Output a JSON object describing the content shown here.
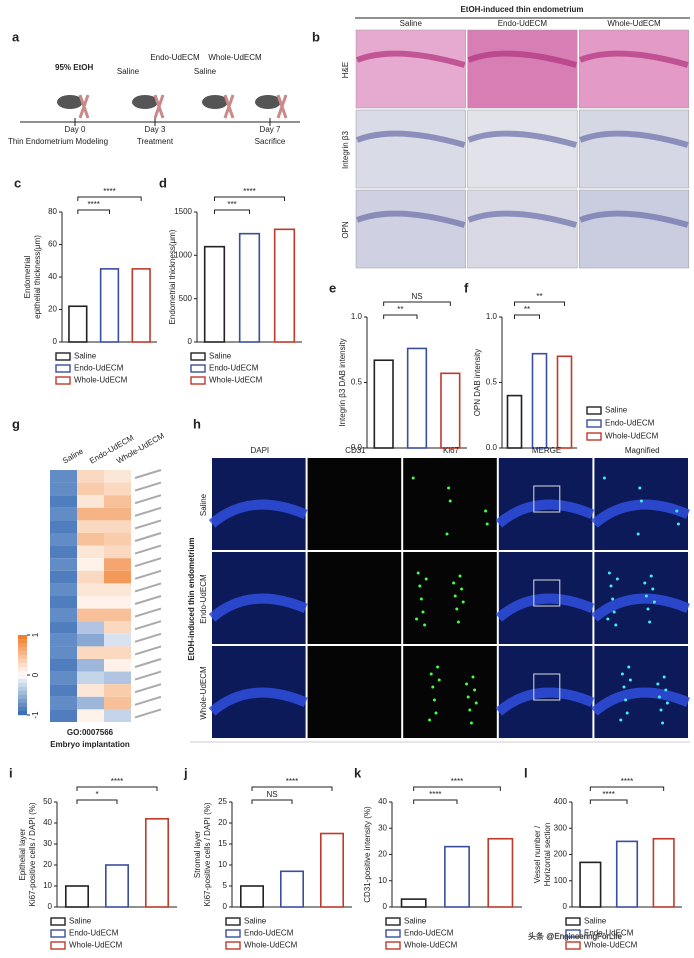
{
  "panel_a": {
    "letter": "a",
    "agent": "95% EtOH",
    "groups": [
      "Saline",
      "Endo-UdECM",
      "Saline",
      "Whole-UdECM"
    ],
    "days": [
      "Day 0",
      "Day 3",
      "Day 7"
    ],
    "stages": [
      "Thin Endometrium Modeling",
      "Treatment",
      "Sacrifice"
    ]
  },
  "panel_b": {
    "letter": "b",
    "title": "EtOH-induced thin endometrium",
    "columns": [
      "Saline",
      "Endo-UdECM",
      "Whole-UdECM"
    ],
    "rows": [
      "H&E",
      "Integrin β3",
      "OPN"
    ]
  },
  "panel_h": {
    "letter": "h",
    "side_label": "EtOH-induced thin endometrium",
    "columns": [
      "DAPI",
      "CD31",
      "Ki67",
      "MERGE",
      "Magnified"
    ],
    "rows": [
      "Saline",
      "Endo-UdECM",
      "Whole-UdECM"
    ]
  },
  "watermark": "头条 @EngineeringForLife",
  "chart_data": [
    {
      "panel": "c",
      "type": "bar",
      "ylabel": [
        "Endometrial",
        "epithelial thickness(μm)"
      ],
      "categories": [
        "Saline",
        "Endo-UdECM",
        "Whole-UdECM"
      ],
      "values": [
        22,
        45,
        45
      ],
      "colors": [
        "#222222",
        "#3a4ea0",
        "#c0392b"
      ],
      "ylim": [
        0,
        80
      ],
      "yticks": [
        0,
        20,
        40,
        60,
        80
      ],
      "annotations": [
        "****",
        "****"
      ]
    },
    {
      "panel": "d",
      "type": "bar",
      "ylabel": [
        "Endometrial thickness(μm)"
      ],
      "categories": [
        "Saline",
        "Endo-UdECM",
        "Whole-UdECM"
      ],
      "values": [
        1100,
        1250,
        1300
      ],
      "colors": [
        "#222222",
        "#3a4ea0",
        "#c0392b"
      ],
      "ylim": [
        0,
        1500
      ],
      "yticks": [
        0,
        500,
        1000,
        1500
      ],
      "annotations": [
        "***",
        "****"
      ]
    },
    {
      "panel": "e",
      "type": "bar",
      "ylabel": [
        "Integrin β3 DAB intensity"
      ],
      "values": [
        0.67,
        0.76,
        0.57
      ],
      "colors": [
        "#222222",
        "#3a4ea0",
        "#c0392b"
      ],
      "ylim": [
        0,
        1
      ],
      "yticks": [
        {
          "value": 0,
          "label": "0.0"
        },
        {
          "value": 0.5,
          "label": "0.5"
        },
        {
          "value": 1,
          "label": "1.0"
        }
      ],
      "annotations": [
        "**",
        "NS"
      ]
    },
    {
      "panel": "f",
      "type": "bar",
      "ylabel": [
        "OPN DAB intensity"
      ],
      "categories": [
        "Saline",
        "Endo-UdECM",
        "Whole-UdECM"
      ],
      "values": [
        0.4,
        0.72,
        0.7
      ],
      "colors": [
        "#222222",
        "#3a4ea0",
        "#c0392b"
      ],
      "ylim": [
        0,
        1
      ],
      "yticks": [
        {
          "value": 0,
          "label": "0.0"
        },
        {
          "value": 0.5,
          "label": "0.5"
        },
        {
          "value": 1,
          "label": "1.0"
        }
      ],
      "annotations": [
        "**",
        "**"
      ]
    },
    {
      "panel": "i",
      "type": "bar",
      "ylabel": [
        "Epithelial layer",
        "Ki67-positive cells / DAPI (%)"
      ],
      "categories": [
        "Saline",
        "Endo-UdECM",
        "Whole-UdECM"
      ],
      "values": [
        10,
        20,
        42
      ],
      "colors": [
        "#222222",
        "#3a4ea0",
        "#c0392b"
      ],
      "ylim": [
        0,
        50
      ],
      "yticks": [
        0,
        10,
        20,
        30,
        40,
        50
      ],
      "annotations": [
        "*",
        "****"
      ]
    },
    {
      "panel": "j",
      "type": "bar",
      "ylabel": [
        "Stromal layer",
        "Ki67-positive cells / DAPI (%)"
      ],
      "categories": [
        "Saline",
        "Endo-UdECM",
        "Whole-UdECM"
      ],
      "values": [
        5,
        8.5,
        17.5
      ],
      "colors": [
        "#222222",
        "#3a4ea0",
        "#c0392b"
      ],
      "ylim": [
        0,
        25
      ],
      "yticks": [
        0,
        5,
        10,
        15,
        20,
        25
      ],
      "annotations": [
        "NS",
        "****"
      ]
    },
    {
      "panel": "k",
      "type": "bar",
      "ylabel": [
        "CD31-positive intensity (%)"
      ],
      "categories": [
        "Saline",
        "Endo-UdECM",
        "Whole-UdECM"
      ],
      "values": [
        3,
        23,
        26
      ],
      "colors": [
        "#222222",
        "#3a4ea0",
        "#c0392b"
      ],
      "ylim": [
        0,
        40
      ],
      "yticks": [
        0,
        10,
        20,
        30,
        40
      ],
      "annotations": [
        "****",
        "****"
      ]
    },
    {
      "panel": "l",
      "type": "bar",
      "ylabel": [
        "Vessel number /",
        "Horizontal section"
      ],
      "categories": [
        "Saline",
        "Endo-UdECM",
        "Whole-UdECM"
      ],
      "values": [
        170,
        250,
        260
      ],
      "colors": [
        "#222222",
        "#3a4ea0",
        "#c0392b"
      ],
      "ylim": [
        0,
        400
      ],
      "yticks": [
        0,
        100,
        200,
        300,
        400
      ],
      "annotations": [
        "****",
        "****"
      ]
    },
    {
      "panel": "g",
      "type": "heatmap",
      "x": [
        "Saline",
        "Endo-UdECM",
        "Whole-UdECM"
      ],
      "zlim": [
        -1,
        1
      ],
      "zticks": [
        1,
        0,
        -1
      ],
      "go_term": "GO:0007566",
      "go_name": "Embryo implantation",
      "values": [
        [
          -0.8,
          0.3,
          0.2
        ],
        [
          -0.8,
          0.4,
          0.3
        ],
        [
          -0.9,
          0.2,
          0.5
        ],
        [
          -0.8,
          0.6,
          0.6
        ],
        [
          -0.9,
          0.3,
          0.3
        ],
        [
          -0.8,
          0.5,
          0.4
        ],
        [
          -0.9,
          0.2,
          0.3
        ],
        [
          -0.8,
          0.1,
          0.7
        ],
        [
          -0.9,
          0.3,
          0.8
        ],
        [
          -0.8,
          0.2,
          0.2
        ],
        [
          -0.9,
          0.1,
          0.1
        ],
        [
          -0.8,
          0.5,
          0.5
        ],
        [
          -0.9,
          -0.4,
          0.3
        ],
        [
          -0.8,
          -0.6,
          -0.2
        ],
        [
          -0.8,
          0.3,
          0.3
        ],
        [
          -0.9,
          -0.5,
          0.1
        ],
        [
          -0.8,
          -0.3,
          -0.4
        ],
        [
          -0.9,
          0.2,
          0.4
        ],
        [
          -0.8,
          -0.5,
          0.5
        ],
        [
          -0.9,
          0.1,
          -0.3
        ]
      ]
    }
  ]
}
